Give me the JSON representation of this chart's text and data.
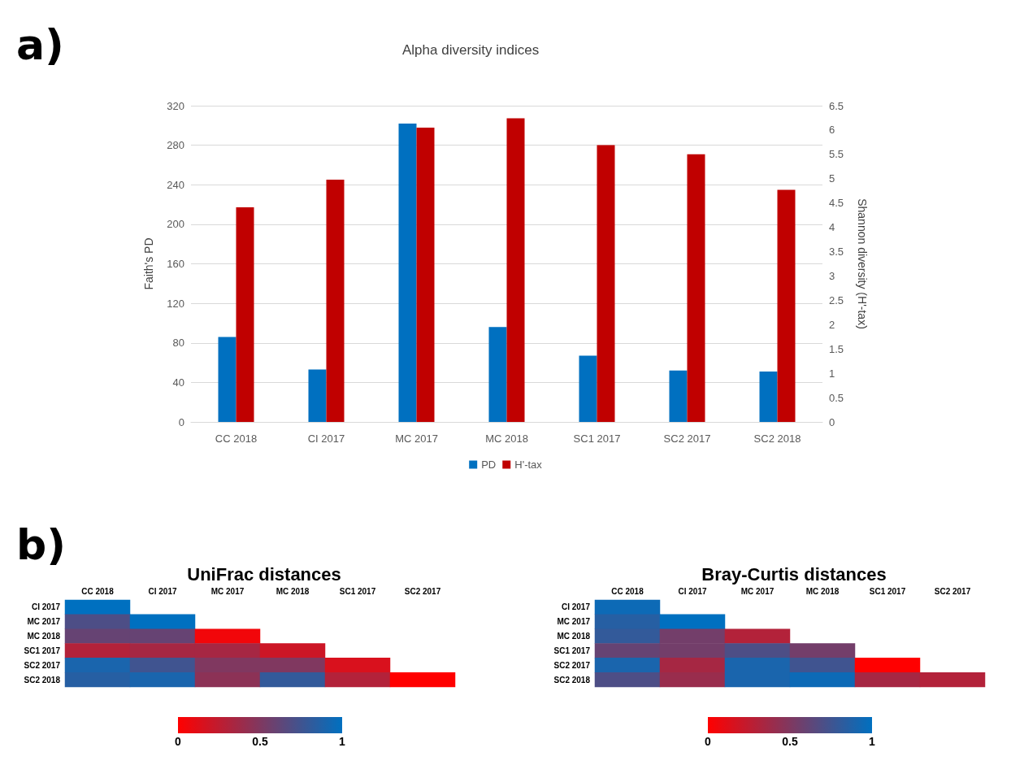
{
  "chart_data": [
    {
      "type": "bar",
      "title": "Alpha diversity indices",
      "ylabel": "Faith's PD",
      "y2label": "Shannon diversity (H'-tax)",
      "annotations": [
        "a)"
      ],
      "categories": [
        "CC 2018",
        "CI 2017",
        "MC 2017",
        "MC 2018",
        "SC1 2017",
        "SC2 2017",
        "SC2 2018"
      ],
      "series": [
        {
          "name": "PD",
          "color": "#0070c0",
          "values": [
            86,
            53,
            302,
            96,
            67,
            52,
            51
          ]
        },
        {
          "name": "H'-tax",
          "color": "#c00000",
          "axis": "y2",
          "values": [
            4.41,
            4.98,
            6.05,
            6.24,
            5.69,
            5.5,
            4.77
          ]
        }
      ],
      "ylim": [
        0,
        320
      ],
      "yticks": [
        0,
        40,
        80,
        120,
        160,
        200,
        240,
        280,
        320
      ],
      "y2lim": [
        0,
        6.5
      ],
      "y2ticks": [
        0,
        0.5,
        1,
        1.5,
        2,
        2.5,
        3,
        3.5,
        4,
        4.5,
        5,
        5.5,
        6,
        6.5
      ],
      "grid": "y",
      "legend": "bottom"
    },
    {
      "type": "heatmap",
      "title": "UniFrac distances",
      "annotations": [
        "b)"
      ],
      "categories": [
        "CC 2018",
        "CI 2017",
        "MC 2017",
        "MC 2018",
        "SC1 2017",
        "SC2 2017"
      ],
      "y_categories": [
        "CI 2017",
        "MC 2017",
        "MC 2018",
        "SC1 2017",
        "SC2 2017",
        "SC2 2018"
      ],
      "cells": [
        [
          1.0,
          null,
          null,
          null,
          null,
          null
        ],
        [
          0.7,
          1.0,
          null,
          null,
          null,
          null
        ],
        [
          0.6,
          0.6,
          0.05,
          null,
          null,
          null
        ],
        [
          0.3,
          0.35,
          0.35,
          0.2,
          null,
          null
        ],
        [
          0.9,
          0.75,
          0.5,
          0.5,
          0.15,
          null
        ],
        [
          0.85,
          0.9,
          0.45,
          0.8,
          0.3,
          0.0
        ]
      ],
      "clim": [
        0,
        1
      ],
      "cticks": [
        0,
        0.5,
        1
      ]
    },
    {
      "type": "heatmap",
      "title": "Bray-Curtis distances",
      "categories": [
        "CC 2018",
        "CI 2017",
        "MC 2017",
        "MC 2018",
        "SC1 2017",
        "SC2 2017"
      ],
      "y_categories": [
        "CI 2017",
        "MC 2017",
        "MC 2018",
        "SC1 2017",
        "SC2 2017",
        "SC2 2018"
      ],
      "cells": [
        [
          0.95,
          null,
          null,
          null,
          null,
          null
        ],
        [
          0.85,
          1.0,
          null,
          null,
          null,
          null
        ],
        [
          0.8,
          0.55,
          0.3,
          null,
          null,
          null
        ],
        [
          0.6,
          0.55,
          0.7,
          0.55,
          null,
          null
        ],
        [
          0.9,
          0.35,
          0.9,
          0.75,
          0.0,
          null
        ],
        [
          0.7,
          0.4,
          0.9,
          0.95,
          0.35,
          0.3
        ]
      ],
      "clim": [
        0,
        1
      ],
      "cticks": [
        0,
        0.5,
        1
      ]
    }
  ]
}
